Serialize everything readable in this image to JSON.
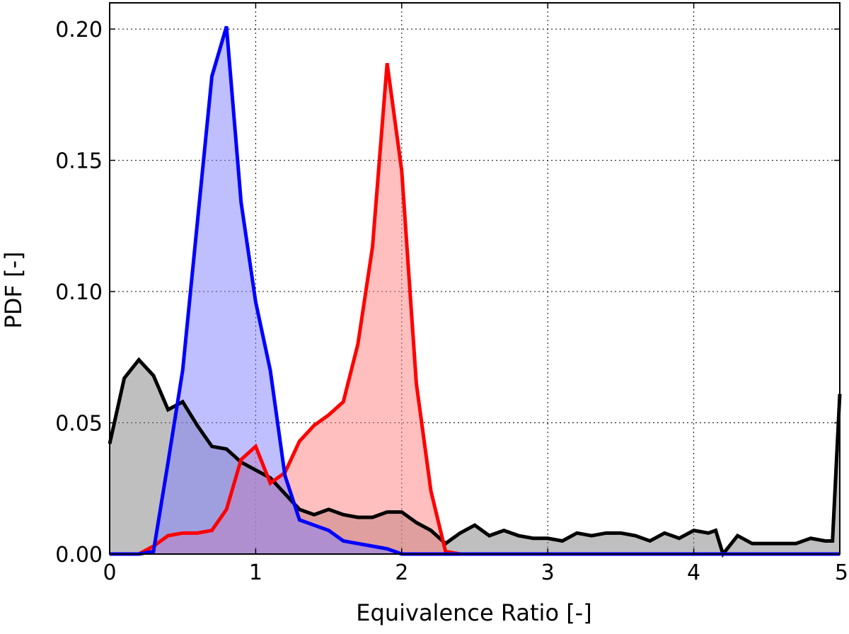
{
  "chart_data": {
    "type": "area",
    "title": "",
    "xlabel": "Equivalence Ratio [-]",
    "ylabel": "PDF [-]",
    "xlim": [
      0,
      5
    ],
    "ylim": [
      0,
      0.21
    ],
    "grid": true,
    "xticks": [
      0,
      1,
      2,
      3,
      4,
      5
    ],
    "xtick_labels": [
      "0",
      "1",
      "2",
      "3",
      "4",
      "5"
    ],
    "yticks": [
      0.0,
      0.05,
      0.1,
      0.15,
      0.2
    ],
    "ytick_labels": [
      "0.00",
      "0.05",
      "0.10",
      "0.15",
      "0.20"
    ],
    "series": [
      {
        "color": "#000000",
        "fill": "#808080",
        "points": [
          [
            0.0,
            0.042
          ],
          [
            0.1,
            0.067
          ],
          [
            0.2,
            0.074
          ],
          [
            0.3,
            0.068
          ],
          [
            0.4,
            0.055
          ],
          [
            0.5,
            0.058
          ],
          [
            0.6,
            0.049
          ],
          [
            0.7,
            0.041
          ],
          [
            0.8,
            0.04
          ],
          [
            0.9,
            0.035
          ],
          [
            1.0,
            0.032
          ],
          [
            1.1,
            0.029
          ],
          [
            1.2,
            0.023
          ],
          [
            1.3,
            0.017
          ],
          [
            1.4,
            0.015
          ],
          [
            1.5,
            0.017
          ],
          [
            1.6,
            0.015
          ],
          [
            1.7,
            0.014
          ],
          [
            1.8,
            0.014
          ],
          [
            1.9,
            0.016
          ],
          [
            2.0,
            0.016
          ],
          [
            2.1,
            0.012
          ],
          [
            2.2,
            0.009
          ],
          [
            2.3,
            0.004
          ],
          [
            2.4,
            0.008
          ],
          [
            2.5,
            0.011
          ],
          [
            2.6,
            0.007
          ],
          [
            2.7,
            0.009
          ],
          [
            2.8,
            0.007
          ],
          [
            2.9,
            0.006
          ],
          [
            3.0,
            0.006
          ],
          [
            3.1,
            0.005
          ],
          [
            3.2,
            0.008
          ],
          [
            3.3,
            0.007
          ],
          [
            3.4,
            0.008
          ],
          [
            3.5,
            0.008
          ],
          [
            3.6,
            0.007
          ],
          [
            3.7,
            0.005
          ],
          [
            3.8,
            0.008
          ],
          [
            3.9,
            0.006
          ],
          [
            4.0,
            0.009
          ],
          [
            4.1,
            0.008
          ],
          [
            4.15,
            0.009
          ],
          [
            4.2,
            0.0
          ],
          [
            4.3,
            0.007
          ],
          [
            4.4,
            0.004
          ],
          [
            4.5,
            0.004
          ],
          [
            4.6,
            0.004
          ],
          [
            4.7,
            0.004
          ],
          [
            4.8,
            0.006
          ],
          [
            4.9,
            0.005
          ],
          [
            4.95,
            0.005
          ],
          [
            5.0,
            0.061
          ]
        ]
      },
      {
        "color": "#ff0000",
        "fill": "#ff8080",
        "points": [
          [
            0.0,
            0.0
          ],
          [
            0.1,
            0.0
          ],
          [
            0.2,
            0.0
          ],
          [
            0.3,
            0.003
          ],
          [
            0.4,
            0.007
          ],
          [
            0.5,
            0.008
          ],
          [
            0.6,
            0.008
          ],
          [
            0.7,
            0.009
          ],
          [
            0.8,
            0.017
          ],
          [
            0.9,
            0.036
          ],
          [
            1.0,
            0.041
          ],
          [
            1.1,
            0.027
          ],
          [
            1.2,
            0.031
          ],
          [
            1.3,
            0.043
          ],
          [
            1.4,
            0.049
          ],
          [
            1.5,
            0.053
          ],
          [
            1.6,
            0.058
          ],
          [
            1.7,
            0.08
          ],
          [
            1.8,
            0.117
          ],
          [
            1.9,
            0.187
          ],
          [
            2.0,
            0.146
          ],
          [
            2.1,
            0.065
          ],
          [
            2.2,
            0.024
          ],
          [
            2.3,
            0.001
          ],
          [
            2.4,
            0.0
          ],
          [
            3.0,
            0.0
          ],
          [
            4.0,
            0.0
          ],
          [
            5.0,
            0.0
          ]
        ]
      },
      {
        "color": "#0000ff",
        "fill": "#8080ff",
        "points": [
          [
            0.0,
            0.0
          ],
          [
            0.1,
            0.0
          ],
          [
            0.2,
            0.0
          ],
          [
            0.3,
            0.001
          ],
          [
            0.4,
            0.035
          ],
          [
            0.5,
            0.07
          ],
          [
            0.6,
            0.126
          ],
          [
            0.7,
            0.182
          ],
          [
            0.8,
            0.201
          ],
          [
            0.9,
            0.134
          ],
          [
            1.0,
            0.096
          ],
          [
            1.1,
            0.07
          ],
          [
            1.2,
            0.03
          ],
          [
            1.3,
            0.013
          ],
          [
            1.4,
            0.011
          ],
          [
            1.5,
            0.009
          ],
          [
            1.6,
            0.005
          ],
          [
            1.7,
            0.004
          ],
          [
            1.8,
            0.003
          ],
          [
            1.9,
            0.002
          ],
          [
            2.0,
            0.0
          ],
          [
            2.5,
            0.0
          ],
          [
            3.0,
            0.0
          ],
          [
            4.0,
            0.0
          ],
          [
            5.0,
            0.0
          ]
        ]
      }
    ]
  }
}
